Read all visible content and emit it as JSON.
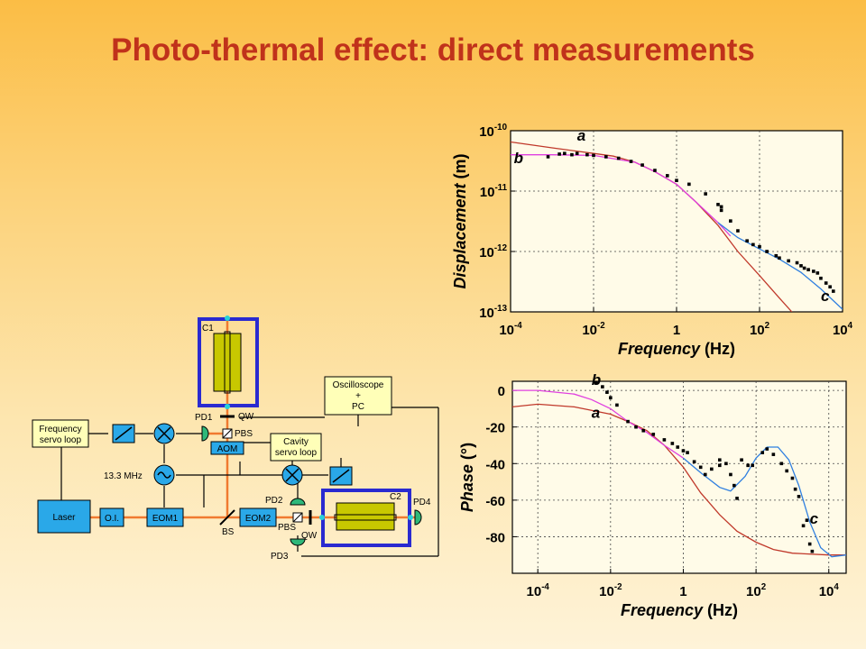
{
  "title": "Photo-thermal effect: direct measurements",
  "colors": {
    "title": "#c0321b",
    "curve_a": "#c0392b",
    "curve_b": "#e040e0",
    "curve_c": "#2f7fe0",
    "beam": "#f07a30",
    "mirror_frame": "#2a2ad0",
    "box_fill": "#2aa8e8",
    "box_yellow": "#ffffb8",
    "crystal": "#c8c800"
  },
  "schematic": {
    "frequency_servo": [
      "Frequency",
      "servo loop"
    ],
    "laser": "Laser",
    "oi": "O.I.",
    "eom1": "EOM1",
    "eom2": "EOM2",
    "aom": "AOM",
    "bs": "BS",
    "pbs_top": "PBS",
    "pbs_bottom": "PBS",
    "qw_top": "QW",
    "qw_bottom": "QW",
    "pd1": "PD1",
    "pd2": "PD2",
    "pd3": "PD3",
    "pd4": "PD4",
    "c1": "C1",
    "c2": "C2",
    "rf": "13.3 MHz",
    "cavity_servo": [
      "Cavity",
      "servo loop"
    ],
    "oscilloscope": [
      "Oscilloscope",
      "+",
      "PC"
    ]
  },
  "chart_data": [
    {
      "type": "line",
      "title": "",
      "xlabel": {
        "italic": "Frequency",
        "plain": " (Hz)"
      },
      "ylabel": {
        "italic": "Displacement",
        "plain": " (m)"
      },
      "xscale": "log",
      "yscale": "log",
      "xlim": [
        0.0001,
        10000
      ],
      "ylim": [
        1e-13,
        1e-10
      ],
      "xticks": [
        {
          "v": 0.0001,
          "base": "10",
          "exp": "-4"
        },
        {
          "v": 0.01,
          "base": "10",
          "exp": "-2"
        },
        {
          "v": 1,
          "base": "1",
          "exp": ""
        },
        {
          "v": 100,
          "base": "10",
          "exp": "2"
        },
        {
          "v": 10000,
          "base": "10",
          "exp": "4"
        }
      ],
      "yticks": [
        {
          "v": 1e-10,
          "base": "10",
          "exp": "-10"
        },
        {
          "v": 1e-11,
          "base": "10",
          "exp": "-11"
        },
        {
          "v": 1e-12,
          "base": "10",
          "exp": "-12"
        },
        {
          "v": 1e-13,
          "base": "10",
          "exp": "-13"
        }
      ],
      "grid": true,
      "labels": [
        {
          "text": "a",
          "x": 0.004,
          "y": 6.8e-11
        },
        {
          "text": "b",
          "x": 0.00012,
          "y": 2.9e-11
        },
        {
          "text": "c",
          "x": 3000,
          "y": 1.5e-13
        }
      ],
      "series": [
        {
          "key": "a",
          "color": "#c0392b",
          "points": [
            [
              0.0001,
              6.5e-11
            ],
            [
              0.001,
              5.2e-11
            ],
            [
              0.01,
              4.2e-11
            ],
            [
              0.03,
              3.8e-11
            ],
            [
              0.1,
              3e-11
            ],
            [
              0.3,
              2.1e-11
            ],
            [
              1,
              1.3e-11
            ],
            [
              3,
              6.5e-12
            ],
            [
              10,
              2.7e-12
            ],
            [
              30,
              1e-12
            ],
            [
              100,
              4e-13
            ],
            [
              300,
              1.7e-13
            ],
            [
              600,
              1e-13
            ]
          ]
        },
        {
          "key": "b",
          "color": "#e040e0",
          "points": [
            [
              0.0001,
              4e-11
            ],
            [
              0.001,
              4e-11
            ],
            [
              0.01,
              3.9e-11
            ],
            [
              0.1,
              3e-11
            ],
            [
              0.3,
              2.1e-11
            ],
            [
              1,
              1.3e-11
            ],
            [
              3,
              6.5e-12
            ],
            [
              10,
              3e-12
            ],
            [
              20,
              1.8e-12
            ]
          ]
        },
        {
          "key": "c",
          "color": "#2f7fe0",
          "points": [
            [
              10,
              3e-12
            ],
            [
              30,
              1.7e-12
            ],
            [
              100,
              1.1e-12
            ],
            [
              300,
              7.5e-13
            ],
            [
              1000,
              4.5e-13
            ],
            [
              3000,
              2.4e-13
            ],
            [
              10000,
              1.1e-13
            ]
          ]
        }
      ],
      "scatter": [
        [
          0.0008,
          3.7e-11
        ],
        [
          0.0015,
          4.1e-11
        ],
        [
          0.002,
          4.2e-11
        ],
        [
          0.003,
          4e-11
        ],
        [
          0.004,
          4.2e-11
        ],
        [
          0.007,
          4e-11
        ],
        [
          0.01,
          3.9e-11
        ],
        [
          0.02,
          3.7e-11
        ],
        [
          0.04,
          3.5e-11
        ],
        [
          0.08,
          3.1e-11
        ],
        [
          0.15,
          2.7e-11
        ],
        [
          0.3,
          2.2e-11
        ],
        [
          0.6,
          1.8e-11
        ],
        [
          1,
          1.5e-11
        ],
        [
          2,
          1.3e-11
        ],
        [
          5,
          9e-12
        ],
        [
          10,
          6e-12
        ],
        [
          12,
          5.5e-12
        ],
        [
          12,
          4.8e-12
        ],
        [
          20,
          3.2e-12
        ],
        [
          30,
          2.2e-12
        ],
        [
          50,
          1.5e-12
        ],
        [
          70,
          1.3e-12
        ],
        [
          100,
          1.2e-12
        ],
        [
          150,
          1e-12
        ],
        [
          250,
          8.5e-13
        ],
        [
          300,
          7.8e-13
        ],
        [
          500,
          7e-13
        ],
        [
          800,
          6.5e-13
        ],
        [
          1000,
          5.8e-13
        ],
        [
          1200,
          5.3e-13
        ],
        [
          1500,
          5e-13
        ],
        [
          2000,
          4.7e-13
        ],
        [
          2500,
          4.4e-13
        ],
        [
          3000,
          3.6e-13
        ],
        [
          4000,
          3e-13
        ],
        [
          5000,
          2.6e-13
        ],
        [
          6000,
          2.2e-13
        ]
      ]
    },
    {
      "type": "line",
      "title": "",
      "xlabel": {
        "italic": "Frequency",
        "plain": " (Hz)"
      },
      "ylabel": {
        "italic": "Phase",
        "plain": " (°)"
      },
      "xscale": "log",
      "yscale": "linear",
      "xlim": [
        2e-05,
        30000
      ],
      "ylim": [
        -100,
        5
      ],
      "xticks": [
        {
          "v": 0.0001,
          "base": "10",
          "exp": "-4"
        },
        {
          "v": 0.01,
          "base": "10",
          "exp": "-2"
        },
        {
          "v": 1,
          "base": "1",
          "exp": ""
        },
        {
          "v": 100,
          "base": "10",
          "exp": "2"
        },
        {
          "v": 10000,
          "base": "10",
          "exp": "4"
        }
      ],
      "yticks": [
        {
          "v": 0,
          "label": "0"
        },
        {
          "v": -20,
          "label": "-20"
        },
        {
          "v": -40,
          "label": "-40"
        },
        {
          "v": -60,
          "label": "-60"
        },
        {
          "v": -80,
          "label": "-80"
        }
      ],
      "grid": true,
      "labels": [
        {
          "text": "b",
          "x": 0.003,
          "y": 3
        },
        {
          "text": "a",
          "x": 0.003,
          "y": -15
        },
        {
          "text": "c",
          "x": 3000,
          "y": -73
        }
      ],
      "series": [
        {
          "key": "a",
          "color": "#c0392b",
          "points": [
            [
              2e-05,
              -9
            ],
            [
              0.0001,
              -7.5
            ],
            [
              0.001,
              -9
            ],
            [
              0.01,
              -13
            ],
            [
              0.03,
              -17
            ],
            [
              0.1,
              -22
            ],
            [
              0.3,
              -30
            ],
            [
              1,
              -42
            ],
            [
              3,
              -56
            ],
            [
              10,
              -68
            ],
            [
              30,
              -77
            ],
            [
              100,
              -83
            ],
            [
              300,
              -87
            ],
            [
              1000,
              -89
            ],
            [
              10000,
              -90
            ],
            [
              30000,
              -90
            ]
          ]
        },
        {
          "key": "b",
          "color": "#e040e0",
          "points": [
            [
              2e-05,
              0
            ],
            [
              0.0001,
              0
            ],
            [
              0.001,
              -2
            ],
            [
              0.003,
              -5
            ],
            [
              0.01,
              -10
            ],
            [
              0.03,
              -17
            ],
            [
              0.1,
              -23
            ],
            [
              0.3,
              -30
            ],
            [
              1,
              -37
            ]
          ]
        },
        {
          "key": "c",
          "color": "#2f7fe0",
          "points": [
            [
              1,
              -37
            ],
            [
              3,
              -45
            ],
            [
              10,
              -53
            ],
            [
              20,
              -55
            ],
            [
              50,
              -47
            ],
            [
              100,
              -37
            ],
            [
              200,
              -31
            ],
            [
              400,
              -31
            ],
            [
              800,
              -38
            ],
            [
              1500,
              -52
            ],
            [
              3000,
              -72
            ],
            [
              6000,
              -86
            ],
            [
              12000,
              -91
            ],
            [
              30000,
              -90
            ]
          ]
        }
      ],
      "scatter": [
        [
          0.004,
          4
        ],
        [
          0.006,
          2
        ],
        [
          0.008,
          -1
        ],
        [
          0.01,
          -4
        ],
        [
          0.015,
          -8
        ],
        [
          0.03,
          -17
        ],
        [
          0.05,
          -20
        ],
        [
          0.08,
          -22
        ],
        [
          0.15,
          -24
        ],
        [
          0.3,
          -27
        ],
        [
          0.5,
          -29
        ],
        [
          0.7,
          -31
        ],
        [
          1,
          -33
        ],
        [
          1.3,
          -34
        ],
        [
          2,
          -39
        ],
        [
          3,
          -42
        ],
        [
          4,
          -46
        ],
        [
          6,
          -43
        ],
        [
          10,
          -38
        ],
        [
          10,
          -41
        ],
        [
          15,
          -40
        ],
        [
          20,
          -46
        ],
        [
          25,
          -52
        ],
        [
          30,
          -59
        ],
        [
          40,
          -38
        ],
        [
          60,
          -41
        ],
        [
          80,
          -41
        ],
        [
          150,
          -34
        ],
        [
          200,
          -32
        ],
        [
          300,
          -35
        ],
        [
          500,
          -40
        ],
        [
          700,
          -44
        ],
        [
          1000,
          -48
        ],
        [
          1200,
          -54
        ],
        [
          1500,
          -58
        ],
        [
          2000,
          -74
        ],
        [
          2500,
          -71
        ],
        [
          3000,
          -84
        ],
        [
          3500,
          -88
        ]
      ]
    }
  ]
}
